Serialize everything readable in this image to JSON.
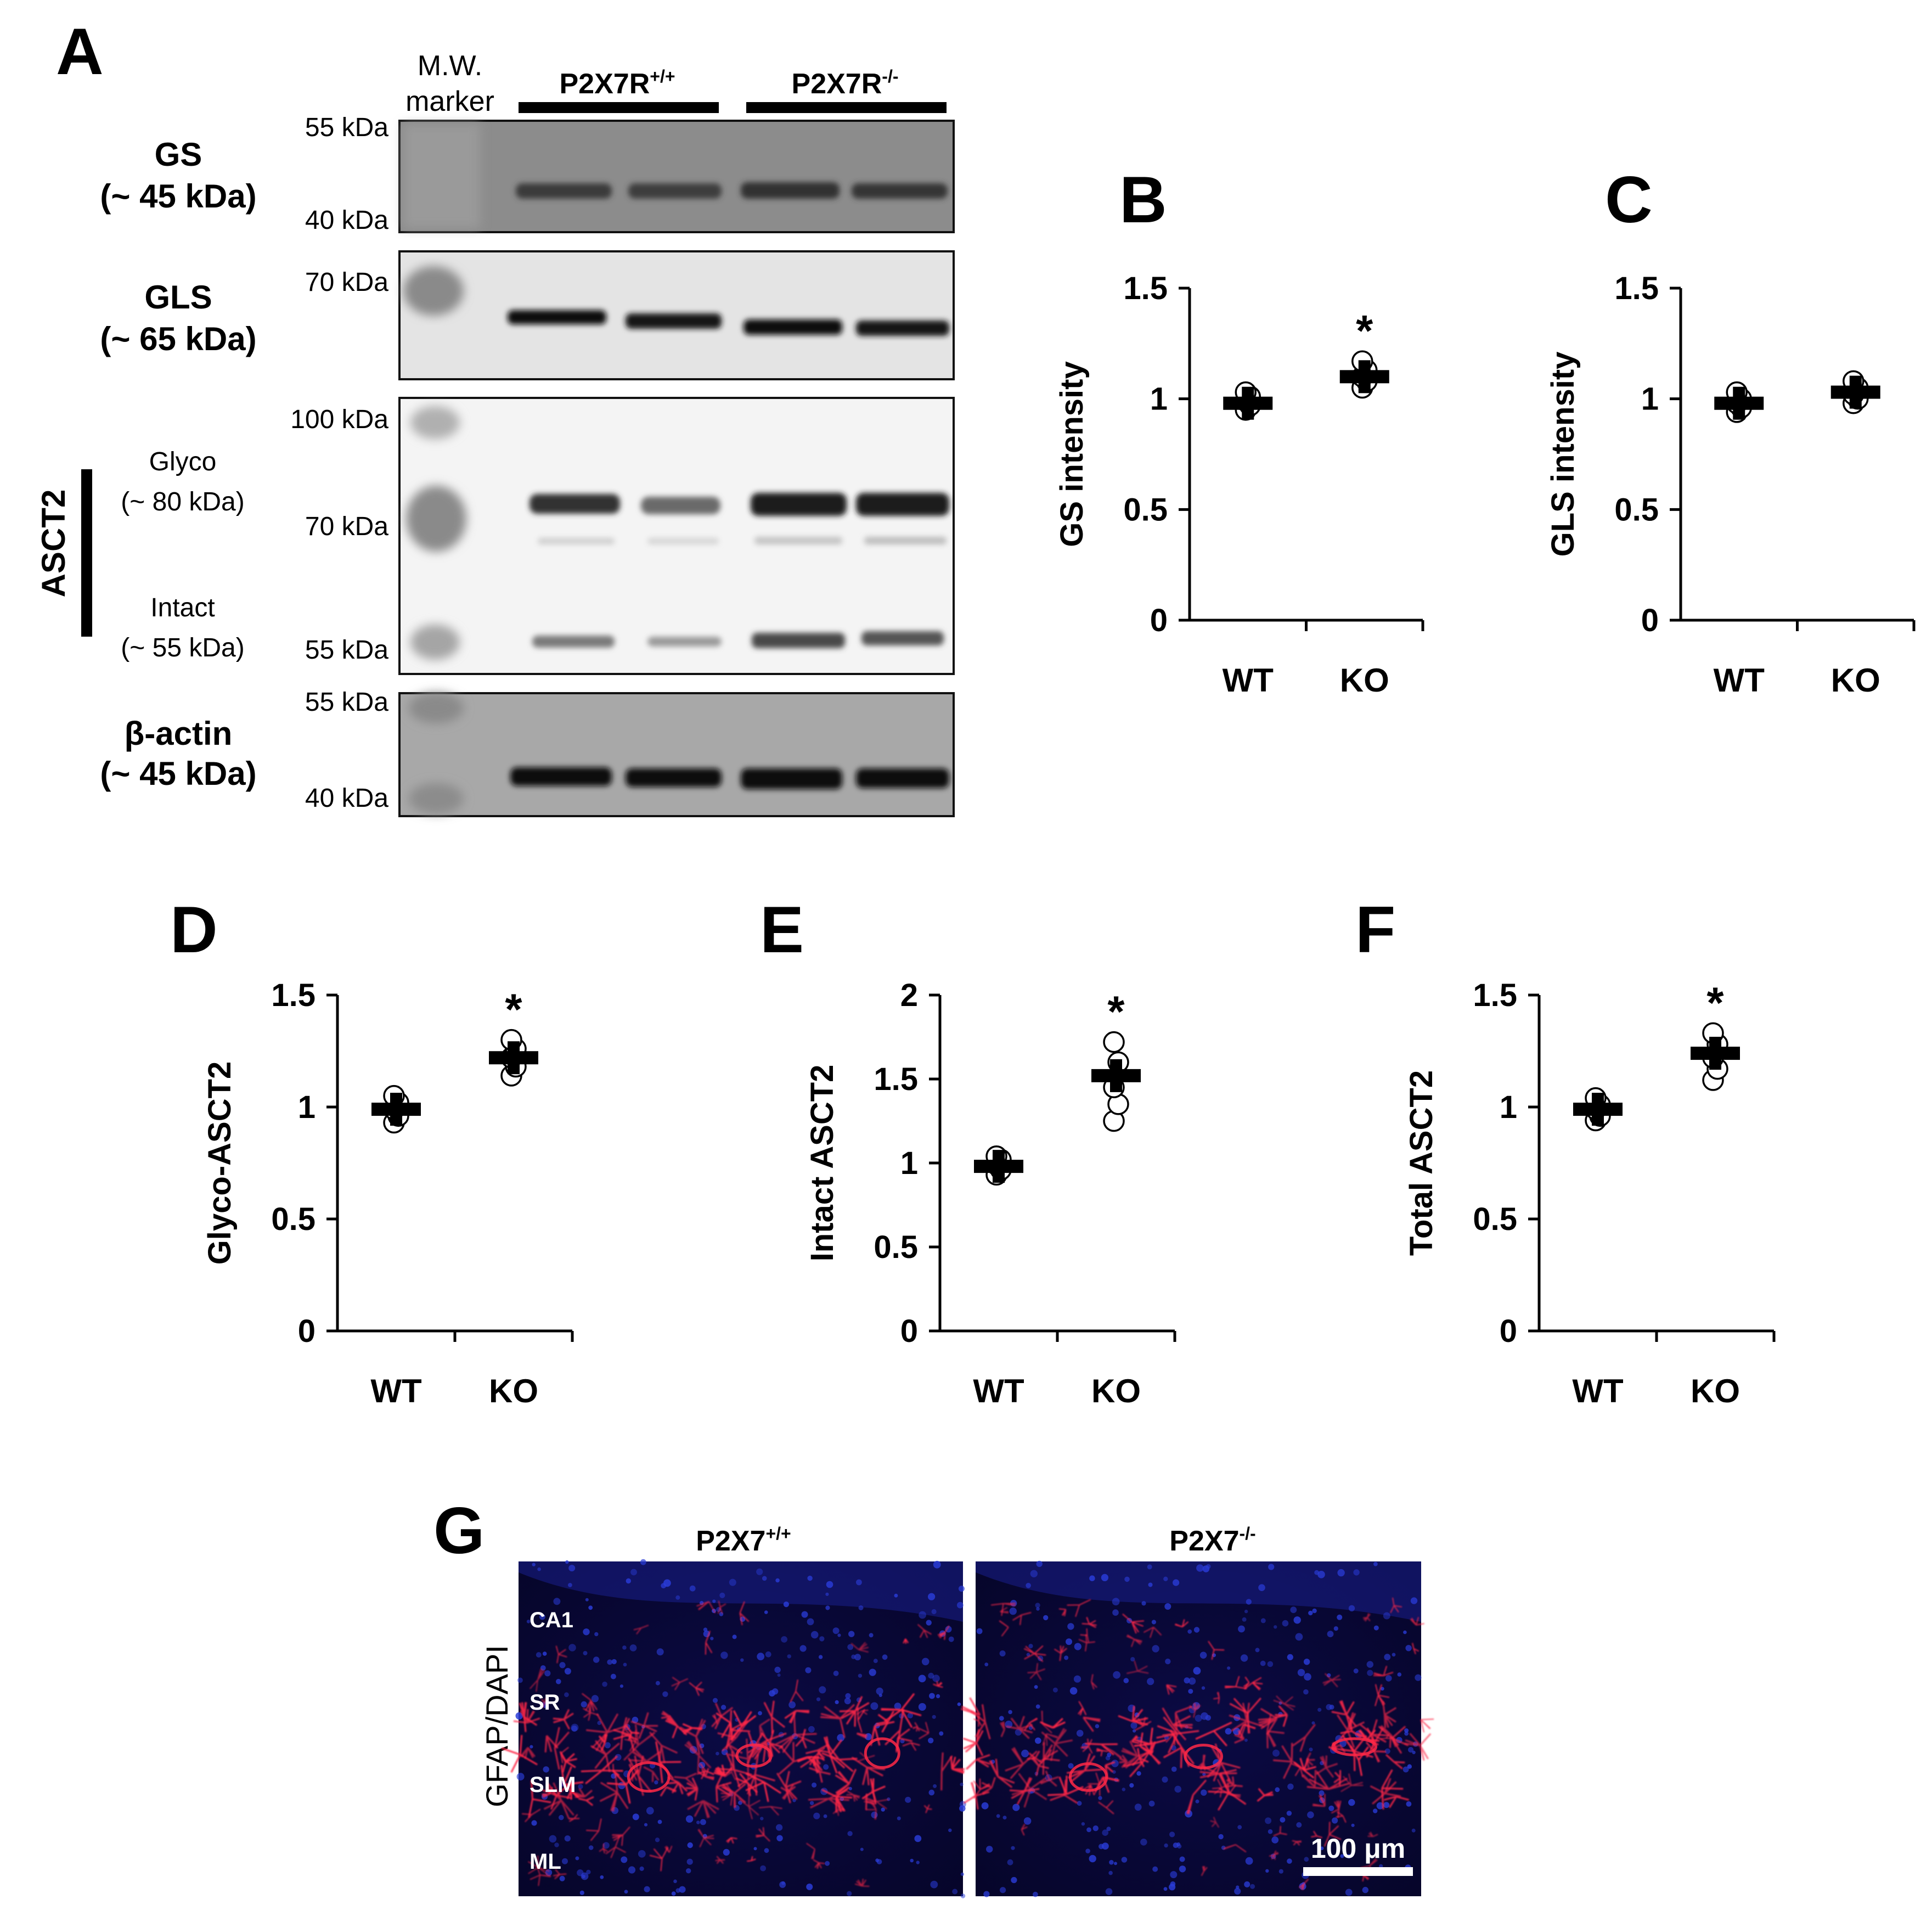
{
  "panel_letters": {
    "a": "A",
    "b": "B",
    "c": "C",
    "d": "D",
    "e": "E",
    "f": "F",
    "g": "G"
  },
  "blot": {
    "mw_marker_line1": "M.W.",
    "mw_marker_line2": "marker",
    "group_wt": {
      "base": "P2X7R",
      "sup": "+/+"
    },
    "group_ko": {
      "base": "P2X7R",
      "sup": "-/-"
    },
    "gs": {
      "name": "GS",
      "size": "(~ 45 kDa)",
      "mw_top": "55 kDa",
      "mw_bottom": "40 kDa"
    },
    "gls": {
      "name": "GLS",
      "size": "(~ 65 kDa)",
      "mw_top": "70 kDa"
    },
    "asct2": {
      "name": "ASCT2",
      "glyco_label": "Glyco",
      "glyco_size": "(~ 80 kDa)",
      "intact_label": "Intact",
      "intact_size": "(~ 55 kDa)",
      "mw_top": "100 kDa",
      "mw_mid": "70 kDa",
      "mw_bottom": "55 kDa"
    },
    "actin": {
      "name": "β-actin",
      "size": "(~ 45 kDa)",
      "mw_top": "55 kDa",
      "mw_bottom": "40 kDa"
    }
  },
  "chart_data": [
    {
      "id": "B",
      "type": "scatter",
      "ylabel": "GS intensity",
      "categories": [
        "WT",
        "KO"
      ],
      "ylim": [
        0,
        1.5
      ],
      "yticks": [
        "0",
        "0.5",
        "1",
        "1.5"
      ],
      "means": [
        0.98,
        1.1
      ],
      "points": [
        [
          0.95,
          0.97,
          0.99,
          1.01,
          1.03
        ],
        [
          1.05,
          1.08,
          1.1,
          1.13,
          1.17
        ]
      ],
      "significance": [
        "",
        "*"
      ]
    },
    {
      "id": "C",
      "type": "scatter",
      "ylabel": "GLS intensity",
      "categories": [
        "WT",
        "KO"
      ],
      "ylim": [
        0,
        1.5
      ],
      "yticks": [
        "0",
        "0.5",
        "1",
        "1.5"
      ],
      "means": [
        0.98,
        1.03
      ],
      "points": [
        [
          0.94,
          0.96,
          0.98,
          1.0,
          1.03
        ],
        [
          0.98,
          1.0,
          1.02,
          1.05,
          1.08
        ]
      ],
      "significance": [
        "",
        ""
      ]
    },
    {
      "id": "D",
      "type": "scatter",
      "ylabel": "Glyco-ASCT2",
      "categories": [
        "WT",
        "KO"
      ],
      "ylim": [
        0,
        1.5
      ],
      "yticks": [
        "0",
        "0.5",
        "1",
        "1.5"
      ],
      "means": [
        0.99,
        1.22
      ],
      "points": [
        [
          0.93,
          0.96,
          0.99,
          1.02,
          1.05
        ],
        [
          1.14,
          1.18,
          1.22,
          1.26,
          1.3
        ]
      ],
      "significance": [
        "",
        "*"
      ]
    },
    {
      "id": "E",
      "type": "scatter",
      "ylabel": "Intact ASCT2",
      "categories": [
        "WT",
        "KO"
      ],
      "ylim": [
        0,
        2
      ],
      "yticks": [
        "0",
        "0.5",
        "1",
        "1.5",
        "2"
      ],
      "means": [
        0.98,
        1.52
      ],
      "points": [
        [
          0.93,
          0.96,
          0.99,
          1.02,
          1.04
        ],
        [
          1.25,
          1.35,
          1.45,
          1.6,
          1.72
        ]
      ],
      "significance": [
        "",
        "*"
      ]
    },
    {
      "id": "F",
      "type": "scatter",
      "ylabel": "Total ASCT2",
      "categories": [
        "WT",
        "KO"
      ],
      "ylim": [
        0,
        1.5
      ],
      "yticks": [
        "0",
        "0.5",
        "1",
        "1.5"
      ],
      "means": [
        0.99,
        1.24
      ],
      "points": [
        [
          0.94,
          0.96,
          0.99,
          1.01,
          1.04
        ],
        [
          1.12,
          1.17,
          1.22,
          1.28,
          1.33
        ]
      ],
      "significance": [
        "",
        "*"
      ]
    }
  ],
  "micrograph": {
    "ylabel": "GFAP/DAPI",
    "left_title": {
      "base": "P2X7",
      "sup": "+/+"
    },
    "right_title": {
      "base": "P2X7",
      "sup": "-/-"
    },
    "layers": [
      "CA1",
      "SR",
      "SLM",
      "ML"
    ],
    "scale_bar": "100 μm",
    "colors": {
      "background": "#0a0838",
      "gfap": "#ff2846",
      "dapi": "#2a3cd8"
    }
  }
}
